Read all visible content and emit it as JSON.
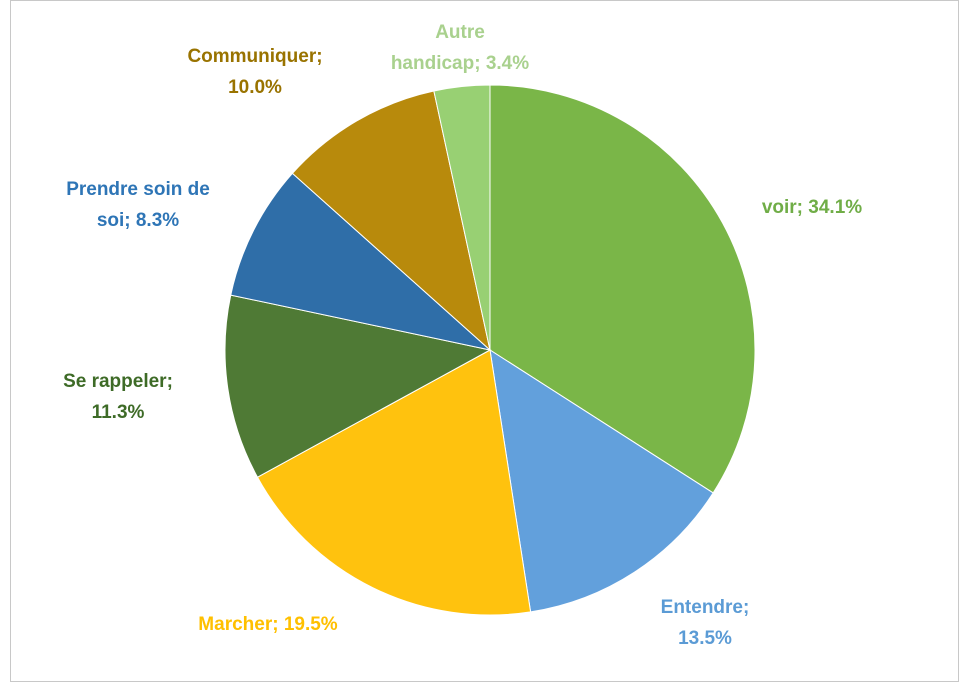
{
  "chart_data": {
    "type": "pie",
    "categories": [
      "voir",
      "Entendre",
      "Marcher",
      "Se rappeler",
      "Prendre soin de soi",
      "Communiquer",
      "Autre handicap"
    ],
    "values": [
      34.1,
      13.5,
      19.5,
      11.3,
      8.3,
      10.0,
      3.4
    ],
    "value_labels": [
      [
        "voir; 34.1%"
      ],
      [
        "Entendre;",
        "13.5%"
      ],
      [
        "Marcher; 19.5%"
      ],
      [
        "Se rappeler;",
        "11.3%"
      ],
      [
        "Prendre soin de",
        "soi; 8.3%"
      ],
      [
        "Communiquer;",
        "10.0%"
      ],
      [
        "Autre",
        "handicap; 3.4%"
      ]
    ],
    "colors": [
      "#7ab648",
      "#62a0dc",
      "#ffc20e",
      "#4f7a35",
      "#2f6ea8",
      "#b88a0c",
      "#98d073"
    ],
    "label_colors": [
      "#70ad47",
      "#5b9bd5",
      "#ffc000",
      "#3e6b27",
      "#2e75b6",
      "#997300",
      "#a9d18e"
    ]
  }
}
